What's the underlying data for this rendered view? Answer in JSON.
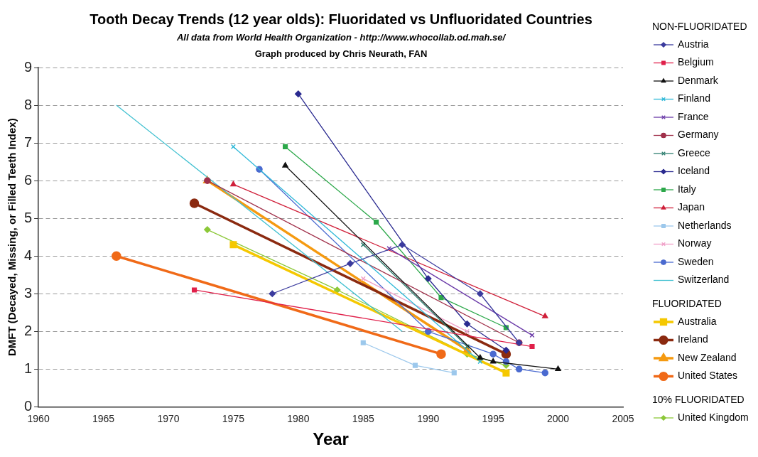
{
  "chart_data": {
    "type": "line",
    "title": "Tooth Decay Trends (12 year olds): Fluoridated vs Unfluoridated Countries",
    "subtitle": "All data from World Health Organization - http://www.whocollab.od.mah.se/",
    "annotations": [
      "Graph produced by Chris Neurath, FAN",
      "NON-FLUORIDATED",
      "FLUORIDATED",
      "10% FLUORIDATED"
    ],
    "xlabel": "Year",
    "ylabel": "DMFT (Decayed, Missing, or Filled Teeth Index)",
    "xlim": [
      1960,
      2005
    ],
    "xticks": [
      1960,
      1965,
      1970,
      1975,
      1980,
      1985,
      1990,
      1995,
      2000,
      2005
    ],
    "ylim": [
      0,
      9
    ],
    "yticks": [
      0,
      1,
      2,
      3,
      4,
      5,
      6,
      7,
      8,
      9
    ],
    "grid": "y",
    "legend": "right",
    "line_style": "solid",
    "series": [
      {
        "name": "Austria",
        "color": "#3b3b9e",
        "marker": "diamond",
        "x": [
          1978,
          1984,
          1988,
          1994,
          1997
        ],
        "values": [
          3.0,
          3.8,
          4.3,
          3.0,
          1.7
        ]
      },
      {
        "name": "Belgium",
        "color": "#e0204a",
        "marker": "square",
        "x": [
          1972,
          1998
        ],
        "values": [
          3.1,
          1.6
        ]
      },
      {
        "name": "Denmark",
        "color": "#111111",
        "marker": "triangle",
        "x": [
          1979,
          1994,
          1995,
          2000
        ],
        "values": [
          6.4,
          1.3,
          1.2,
          1.0
        ]
      },
      {
        "name": "Finland",
        "color": "#2eb8d8",
        "marker": "cross",
        "x": [
          1975,
          1994
        ],
        "values": [
          6.9,
          1.2
        ]
      },
      {
        "name": "France",
        "color": "#6a3aa8",
        "marker": "cross",
        "x": [
          1987,
          1998
        ],
        "values": [
          4.2,
          1.9
        ]
      },
      {
        "name": "Germany",
        "color": "#a0304a",
        "marker": "circle",
        "x": [
          1973,
          1997
        ],
        "values": [
          6.0,
          1.7
        ]
      },
      {
        "name": "Greece",
        "color": "#2f7f70",
        "marker": "cross",
        "x": [
          1985,
          1993
        ],
        "values": [
          4.3,
          1.6
        ]
      },
      {
        "name": "Iceland",
        "color": "#2a2a90",
        "marker": "diamond",
        "x": [
          1980,
          1990,
          1993,
          1996
        ],
        "values": [
          8.3,
          3.4,
          2.2,
          1.5
        ]
      },
      {
        "name": "Italy",
        "color": "#2ca84a",
        "marker": "square",
        "x": [
          1979,
          1986,
          1991,
          1996
        ],
        "values": [
          6.9,
          4.9,
          2.9,
          2.1
        ]
      },
      {
        "name": "Japan",
        "color": "#d0203a",
        "marker": "triangle",
        "x": [
          1975,
          1999
        ],
        "values": [
          5.9,
          2.4
        ]
      },
      {
        "name": "Netherlands",
        "color": "#9cc8ec",
        "marker": "square",
        "x": [
          1985,
          1989,
          1992
        ],
        "values": [
          1.7,
          1.1,
          0.9
        ]
      },
      {
        "name": "Norway",
        "color": "#f0a0c8",
        "marker": "cross",
        "x": [
          1985,
          1993
        ],
        "values": [
          3.4,
          2.0
        ]
      },
      {
        "name": "Sweden",
        "color": "#4a6ad0",
        "marker": "circle",
        "x": [
          1977,
          1990,
          1995,
          1996,
          1997,
          1999
        ],
        "values": [
          6.3,
          2.0,
          1.4,
          1.2,
          1.0,
          0.9
        ]
      },
      {
        "name": "Switzerland",
        "color": "#40c0d0",
        "marker": "none",
        "x": [
          1966,
          1988
        ],
        "values": [
          8.0,
          2.0
        ]
      },
      {
        "name": "Australia",
        "color": "#f5c800",
        "marker": "square",
        "x": [
          1975,
          1996
        ],
        "values": [
          4.3,
          0.9
        ]
      },
      {
        "name": "Ireland",
        "color": "#8b2a10",
        "marker": "circle",
        "x": [
          1972,
          1996
        ],
        "values": [
          5.4,
          1.4
        ]
      },
      {
        "name": "New Zealand",
        "color": "#f59a10",
        "marker": "triangle",
        "x": [
          1973,
          1993
        ],
        "values": [
          6.0,
          1.5
        ]
      },
      {
        "name": "United States",
        "color": "#f06a18",
        "marker": "circle",
        "x": [
          1966,
          1991
        ],
        "values": [
          4.0,
          1.4
        ]
      },
      {
        "name": "United Kingdom",
        "color": "#8cc838",
        "marker": "diamond",
        "x": [
          1973,
          1983,
          1993,
          1996
        ],
        "values": [
          4.7,
          3.1,
          1.4,
          1.1
        ]
      }
    ]
  }
}
